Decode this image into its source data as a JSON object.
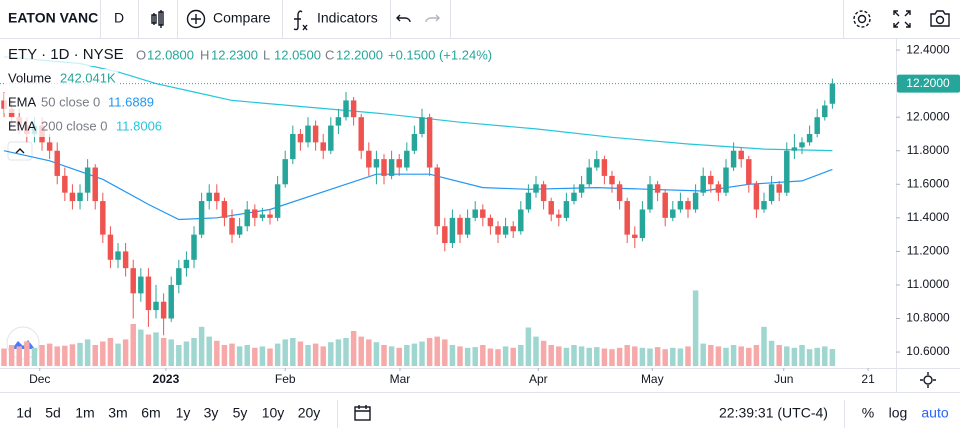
{
  "toolbar": {
    "symbol": "EATON VANC",
    "interval": "D",
    "compare": "Compare",
    "indicators": "Indicators"
  },
  "legend": {
    "title": "ETY · 1D · NYSE",
    "ohlc": [
      {
        "key": "O",
        "value": "12.0800"
      },
      {
        "key": "H",
        "value": "12.2300"
      },
      {
        "key": "L",
        "value": "12.0500"
      },
      {
        "key": "C",
        "value": "12.2000"
      }
    ],
    "change": "+0.1500 (+1.24%)",
    "volume": {
      "name": "Volume",
      "value": "242.041K"
    },
    "indicators": [
      {
        "name": "EMA",
        "params": "50 close 0",
        "value": "11.6889"
      },
      {
        "name": "EMA",
        "params": "200 close 0",
        "value": "11.8006"
      }
    ]
  },
  "chart_data": {
    "type": "candlestick",
    "up_color": "#26a69a",
    "down_color": "#ef5350",
    "volume_up_color": "#9fd6d0",
    "volume_down_color": "#f6a9a8",
    "xlim": [
      -0.53,
      117.37
    ],
    "xticks": [
      {
        "value": 4.7,
        "label": "Dec"
      },
      {
        "value": 21.3,
        "label": "2023"
      },
      {
        "value": 37,
        "label": "Feb"
      },
      {
        "value": 52.1,
        "label": "Mar"
      },
      {
        "value": 70.3,
        "label": "Apr"
      },
      {
        "value": 85.3,
        "label": "May"
      },
      {
        "value": 102.6,
        "label": "Jun"
      },
      {
        "value": 113.7,
        "label": "21"
      }
    ],
    "ylim": [
      10.505,
      12.472
    ],
    "yticks": [
      {
        "value": 12.4,
        "label": "12.4000"
      },
      {
        "value": 12.2,
        "label": "12.2000"
      },
      {
        "value": 12.0,
        "label": "12.0000"
      },
      {
        "value": 11.8,
        "label": "11.8000"
      },
      {
        "value": 11.6,
        "label": "11.6000"
      },
      {
        "value": 11.4,
        "label": "11.4000"
      },
      {
        "value": 11.2,
        "label": "11.2000"
      },
      {
        "value": 11.0,
        "label": "11.0000"
      },
      {
        "value": 10.8,
        "label": "10.8000"
      },
      {
        "value": 10.6,
        "label": "10.6000"
      }
    ],
    "grid": false,
    "last_price": {
      "value": 12.2,
      "label": "12.2000"
    },
    "candles": [
      [
        12.1,
        12.15,
        12.0,
        12.05
      ],
      [
        12.05,
        12.1,
        11.95,
        12.0
      ],
      [
        12.0,
        12.05,
        11.9,
        11.95
      ],
      [
        11.95,
        12.0,
        11.85,
        11.9
      ],
      [
        11.9,
        12.0,
        11.85,
        11.95
      ],
      [
        11.95,
        12.0,
        11.8,
        11.85
      ],
      [
        11.85,
        11.9,
        11.75,
        11.8
      ],
      [
        11.8,
        11.85,
        11.6,
        11.65
      ],
      [
        11.65,
        11.7,
        11.5,
        11.55
      ],
      [
        11.55,
        11.6,
        11.45,
        11.5
      ],
      [
        11.5,
        11.6,
        11.45,
        11.55
      ],
      [
        11.55,
        11.75,
        11.5,
        11.7
      ],
      [
        11.7,
        11.72,
        11.45,
        11.5
      ],
      [
        11.5,
        11.55,
        11.25,
        11.3
      ],
      [
        11.3,
        11.35,
        11.1,
        11.15
      ],
      [
        11.15,
        11.25,
        11.1,
        11.2
      ],
      [
        11.2,
        11.25,
        11.05,
        11.1
      ],
      [
        11.1,
        11.15,
        10.8,
        10.95
      ],
      [
        10.95,
        11.1,
        10.9,
        11.05
      ],
      [
        11.05,
        11.1,
        10.75,
        10.85
      ],
      [
        10.85,
        11.0,
        10.8,
        10.9
      ],
      [
        10.9,
        10.95,
        10.7,
        10.8
      ],
      [
        10.8,
        11.05,
        10.78,
        11.0
      ],
      [
        11.0,
        11.15,
        10.95,
        11.1
      ],
      [
        11.1,
        11.2,
        11.05,
        11.15
      ],
      [
        11.15,
        11.35,
        11.1,
        11.3
      ],
      [
        11.3,
        11.55,
        11.28,
        11.5
      ],
      [
        11.5,
        11.6,
        11.45,
        11.55
      ],
      [
        11.55,
        11.6,
        11.45,
        11.5
      ],
      [
        11.5,
        11.52,
        11.35,
        11.4
      ],
      [
        11.4,
        11.45,
        11.25,
        11.3
      ],
      [
        11.3,
        11.4,
        11.28,
        11.35
      ],
      [
        11.35,
        11.5,
        11.32,
        11.45
      ],
      [
        11.45,
        11.48,
        11.35,
        11.4
      ],
      [
        11.4,
        11.46,
        11.38,
        11.42
      ],
      [
        11.42,
        11.45,
        11.36,
        11.4
      ],
      [
        11.4,
        11.65,
        11.38,
        11.6
      ],
      [
        11.6,
        11.8,
        11.58,
        11.75
      ],
      [
        11.75,
        11.95,
        11.72,
        11.9
      ],
      [
        11.9,
        11.93,
        11.8,
        11.85
      ],
      [
        11.85,
        12.0,
        11.82,
        11.95
      ],
      [
        11.95,
        11.98,
        11.8,
        11.85
      ],
      [
        11.85,
        11.9,
        11.75,
        11.8
      ],
      [
        11.8,
        12.0,
        11.78,
        11.95
      ],
      [
        11.95,
        12.05,
        11.9,
        12.0
      ],
      [
        12.0,
        12.15,
        11.98,
        12.1
      ],
      [
        12.1,
        12.12,
        11.95,
        12.0
      ],
      [
        12.0,
        12.02,
        11.75,
        11.8
      ],
      [
        11.8,
        11.85,
        11.65,
        11.7
      ],
      [
        11.7,
        11.8,
        11.6,
        11.75
      ],
      [
        11.75,
        11.78,
        11.6,
        11.65
      ],
      [
        11.65,
        11.8,
        11.63,
        11.75
      ],
      [
        11.75,
        11.78,
        11.65,
        11.7
      ],
      [
        11.7,
        11.85,
        11.68,
        11.8
      ],
      [
        11.8,
        11.95,
        11.78,
        11.9
      ],
      [
        11.9,
        12.05,
        11.88,
        12.0
      ],
      [
        12.0,
        12.02,
        11.65,
        11.7
      ],
      [
        11.7,
        11.72,
        11.3,
        11.35
      ],
      [
        11.35,
        11.4,
        11.2,
        11.25
      ],
      [
        11.25,
        11.45,
        11.22,
        11.4
      ],
      [
        11.4,
        11.42,
        11.25,
        11.3
      ],
      [
        11.3,
        11.45,
        11.28,
        11.4
      ],
      [
        11.4,
        11.5,
        11.38,
        11.45
      ],
      [
        11.45,
        11.48,
        11.35,
        11.4
      ],
      [
        11.4,
        11.42,
        11.3,
        11.35
      ],
      [
        11.35,
        11.38,
        11.25,
        11.3
      ],
      [
        11.3,
        11.4,
        11.28,
        11.35
      ],
      [
        11.35,
        11.38,
        11.28,
        11.32
      ],
      [
        11.32,
        11.5,
        11.3,
        11.45
      ],
      [
        11.45,
        11.6,
        11.43,
        11.55
      ],
      [
        11.55,
        11.65,
        11.52,
        11.6
      ],
      [
        11.6,
        11.62,
        11.45,
        11.5
      ],
      [
        11.5,
        11.52,
        11.38,
        11.42
      ],
      [
        11.42,
        11.45,
        11.35,
        11.4
      ],
      [
        11.4,
        11.55,
        11.38,
        11.5
      ],
      [
        11.5,
        11.6,
        11.48,
        11.55
      ],
      [
        11.55,
        11.65,
        11.52,
        11.6
      ],
      [
        11.6,
        11.75,
        11.58,
        11.7
      ],
      [
        11.7,
        11.8,
        11.68,
        11.75
      ],
      [
        11.75,
        11.77,
        11.6,
        11.65
      ],
      [
        11.65,
        11.68,
        11.55,
        11.6
      ],
      [
        11.6,
        11.62,
        11.45,
        11.5
      ],
      [
        11.5,
        11.52,
        11.25,
        11.3
      ],
      [
        11.3,
        11.35,
        11.22,
        11.28
      ],
      [
        11.28,
        11.5,
        11.26,
        11.45
      ],
      [
        11.45,
        11.65,
        11.43,
        11.6
      ],
      [
        11.6,
        11.62,
        11.5,
        11.55
      ],
      [
        11.55,
        11.57,
        11.35,
        11.4
      ],
      [
        11.4,
        11.5,
        11.38,
        11.45
      ],
      [
        11.45,
        11.55,
        11.43,
        11.5
      ],
      [
        11.5,
        11.52,
        11.4,
        11.45
      ],
      [
        11.45,
        11.6,
        11.43,
        11.55
      ],
      [
        11.55,
        11.7,
        11.53,
        11.65
      ],
      [
        11.65,
        11.68,
        11.55,
        11.6
      ],
      [
        11.6,
        11.62,
        11.5,
        11.55
      ],
      [
        11.55,
        11.75,
        11.53,
        11.7
      ],
      [
        11.7,
        11.85,
        11.68,
        11.8
      ],
      [
        11.8,
        11.82,
        11.7,
        11.75
      ],
      [
        11.75,
        11.77,
        11.55,
        11.6
      ],
      [
        11.6,
        11.62,
        11.4,
        11.45
      ],
      [
        11.45,
        11.55,
        11.43,
        11.5
      ],
      [
        11.5,
        11.65,
        11.48,
        11.6
      ],
      [
        11.6,
        11.62,
        11.5,
        11.55
      ],
      [
        11.55,
        11.85,
        11.53,
        11.8
      ],
      [
        11.8,
        11.9,
        11.75,
        11.82
      ],
      [
        11.82,
        11.88,
        11.78,
        11.85
      ],
      [
        11.85,
        11.95,
        11.83,
        11.9
      ],
      [
        11.9,
        12.05,
        11.88,
        12.0
      ],
      [
        12.0,
        12.1,
        11.98,
        12.07
      ],
      [
        12.08,
        12.23,
        12.05,
        12.2
      ]
    ],
    "volume": [
      250000,
      300000,
      280000,
      350000,
      260000,
      300000,
      320000,
      280000,
      290000,
      310000,
      330000,
      380000,
      300000,
      350000,
      400000,
      320000,
      380000,
      600000,
      520000,
      450000,
      480000,
      400000,
      380000,
      300000,
      350000,
      400000,
      560000,
      420000,
      360000,
      300000,
      320000,
      280000,
      300000,
      260000,
      280000,
      250000,
      320000,
      380000,
      400000,
      350000,
      300000,
      320000,
      280000,
      340000,
      380000,
      400000,
      500000,
      420000,
      380000,
      340000,
      300000,
      280000,
      260000,
      300000,
      320000,
      350000,
      400000,
      420000,
      380000,
      300000,
      280000,
      260000,
      270000,
      300000,
      250000,
      240000,
      280000,
      260000,
      300000,
      550000,
      420000,
      360000,
      300000,
      280000,
      260000,
      300000,
      280000,
      260000,
      270000,
      250000,
      240000,
      260000,
      300000,
      280000,
      260000,
      250000,
      270000,
      240000,
      260000,
      250000,
      280000,
      1080000,
      320000,
      300000,
      280000,
      260000,
      300000,
      280000,
      260000,
      300000,
      560000,
      360000,
      300000,
      280000,
      260000,
      300000,
      240000,
      260000,
      280000,
      242041
    ],
    "indicators": [
      {
        "color": "#2196f3",
        "x": [
          0,
          6,
          13,
          19,
          23,
          28,
          35,
          43,
          49,
          56,
          63,
          69,
          78,
          85,
          92,
          98,
          105,
          109
        ],
        "values": [
          11.8,
          11.74,
          11.63,
          11.48,
          11.39,
          11.4,
          11.45,
          11.57,
          11.66,
          11.66,
          11.58,
          11.57,
          11.58,
          11.57,
          11.56,
          11.6,
          11.62,
          11.6889
        ]
      },
      {
        "color": "#26c6da",
        "x": [
          0,
          10,
          15,
          20,
          25,
          30,
          40,
          50,
          60,
          70,
          80,
          90,
          100,
          109
        ],
        "values": [
          12.36,
          12.32,
          12.27,
          12.2,
          12.15,
          12.1,
          12.06,
          12.02,
          11.97,
          11.93,
          11.88,
          11.84,
          11.81,
          11.8006
        ]
      }
    ]
  },
  "ranges": [
    "1d",
    "5d",
    "1m",
    "3m",
    "6m",
    "1y",
    "3y",
    "5y",
    "10y",
    "20y"
  ],
  "clock": "22:39:31 (UTC-4)",
  "scale_options": [
    "%",
    "log",
    "auto"
  ]
}
